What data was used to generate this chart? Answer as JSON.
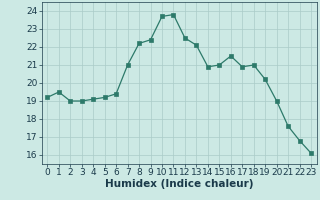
{
  "x": [
    0,
    1,
    2,
    3,
    4,
    5,
    6,
    7,
    8,
    9,
    10,
    11,
    12,
    13,
    14,
    15,
    16,
    17,
    18,
    19,
    20,
    21,
    22,
    23
  ],
  "y": [
    19.2,
    19.5,
    19.0,
    19.0,
    19.1,
    19.2,
    19.4,
    21.0,
    22.2,
    22.4,
    23.7,
    23.8,
    22.5,
    22.1,
    20.9,
    21.0,
    21.5,
    20.9,
    21.0,
    20.2,
    19.0,
    17.6,
    16.8,
    16.1
  ],
  "xlabel": "Humidex (Indice chaleur)",
  "ylim": [
    15.5,
    24.5
  ],
  "xlim": [
    -0.5,
    23.5
  ],
  "yticks": [
    16,
    17,
    18,
    19,
    20,
    21,
    22,
    23,
    24
  ],
  "xticks": [
    0,
    1,
    2,
    3,
    4,
    5,
    6,
    7,
    8,
    9,
    10,
    11,
    12,
    13,
    14,
    15,
    16,
    17,
    18,
    19,
    20,
    21,
    22,
    23
  ],
  "line_color": "#2d7a6a",
  "marker_color": "#2d7a6a",
  "bg_color": "#cce9e4",
  "grid_color": "#aaccc8",
  "text_color": "#1a3a4a",
  "tick_fontsize": 6.5,
  "label_fontsize": 7.5
}
